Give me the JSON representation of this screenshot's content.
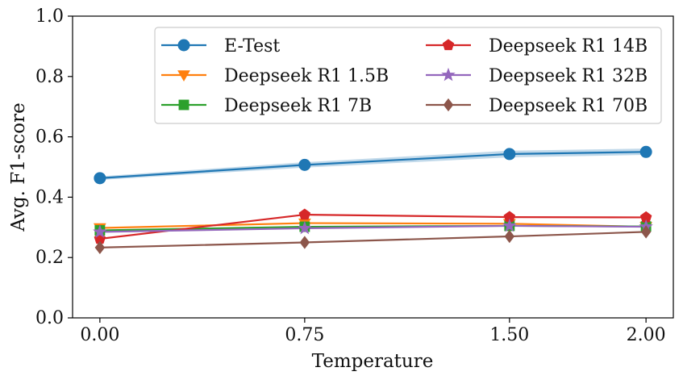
{
  "chart_data": {
    "type": "line",
    "title": "",
    "xlabel": "Temperature",
    "ylabel": "Avg. F1-score",
    "x": [
      0.0,
      0.75,
      1.5,
      2.0
    ],
    "x_tick_labels": [
      "0.00",
      "0.75",
      "1.50",
      "2.00"
    ],
    "xlim": [
      -0.1,
      2.1
    ],
    "ylim": [
      0.0,
      1.0
    ],
    "y_ticks": [
      0.0,
      0.2,
      0.4,
      0.6,
      0.8,
      1.0
    ],
    "y_tick_labels": [
      "0.0",
      "0.2",
      "0.4",
      "0.6",
      "0.8",
      "1.0"
    ],
    "grid": false,
    "legend_position": "top-right",
    "legend_columns": 2,
    "series": [
      {
        "name": "E-Test",
        "values": [
          0.463,
          0.507,
          0.543,
          0.55
        ],
        "band": [
          [
            0.457,
            0.469
          ],
          [
            0.498,
            0.516
          ],
          [
            0.532,
            0.554
          ],
          [
            0.54,
            0.561
          ]
        ],
        "color": "#1f77b4",
        "marker": "circle"
      },
      {
        "name": "Deepseek R1 1.5B",
        "values": [
          0.298,
          0.314,
          0.312,
          0.302
        ],
        "color": "#ff7f0e",
        "marker": "triangle-down"
      },
      {
        "name": "Deepseek R1 7B",
        "values": [
          0.29,
          0.302,
          0.305,
          0.303
        ],
        "color": "#2ca02c",
        "marker": "square"
      },
      {
        "name": "Deepseek R1 14B",
        "values": [
          0.262,
          0.342,
          0.334,
          0.333
        ],
        "color": "#d62728",
        "marker": "pentagon"
      },
      {
        "name": "Deepseek R1 32B",
        "values": [
          0.285,
          0.297,
          0.305,
          0.302
        ],
        "color": "#9467bd",
        "marker": "star"
      },
      {
        "name": "Deepseek R1 70B",
        "values": [
          0.233,
          0.25,
          0.27,
          0.285
        ],
        "color": "#8c564b",
        "marker": "diamond"
      }
    ]
  }
}
